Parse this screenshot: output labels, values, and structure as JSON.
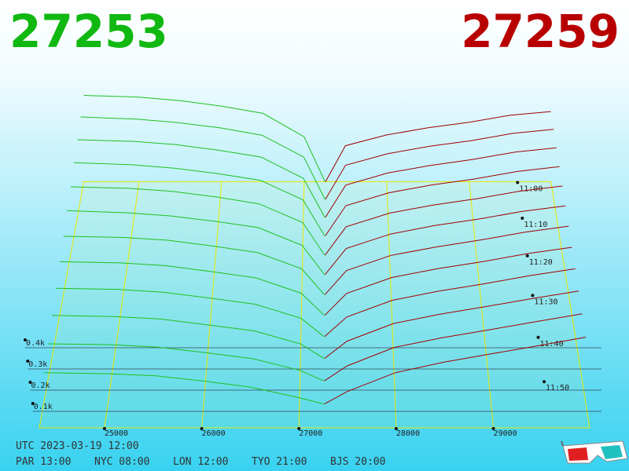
{
  "chart_data": {
    "type": "depth3d",
    "bid": 27253,
    "ask": 27259,
    "bid_color": "#11b811",
    "ask_color": "#b80000",
    "times": [
      "11:00",
      null,
      "11:10",
      null,
      "11:20",
      null,
      "11:30",
      null,
      "11:40",
      null,
      "11:50",
      null
    ],
    "series": [
      {
        "color": "#1fc01f",
        "x": [
          24330,
          25000,
          25500,
          26000,
          26500,
          27000,
          27253
        ],
        "values": [
          [
            480,
            470,
            450,
            420,
            380,
            250,
            0
          ],
          [
            452,
            440,
            421,
            392,
            352,
            232,
            0
          ],
          [
            421,
            412,
            394,
            364,
            327,
            212,
            0
          ],
          [
            392,
            381,
            363,
            334,
            298,
            193,
            0
          ],
          [
            360,
            352,
            336,
            307,
            270,
            172,
            0
          ],
          [
            333,
            322,
            306,
            278,
            245,
            152,
            0
          ],
          [
            300,
            294,
            280,
            250,
            217,
            133,
            0
          ],
          [
            272,
            266,
            252,
            222,
            190,
            112,
            0
          ],
          [
            241,
            236,
            222,
            193,
            162,
            92,
            0
          ],
          [
            212,
            206,
            194,
            165,
            136,
            72,
            0
          ],
          [
            180,
            176,
            164,
            137,
            108,
            51,
            0
          ],
          [
            150,
            145,
            135,
            110,
            80,
            30,
            0
          ]
        ]
      },
      {
        "color": "#a00000",
        "x": [
          27259,
          27500,
          28000,
          28500,
          29000,
          29500,
          29990
        ],
        "values": [
          [
            0,
            200,
            260,
            300,
            330,
            370,
            390
          ],
          [
            0,
            187,
            250,
            291,
            322,
            362,
            384
          ],
          [
            0,
            175,
            241,
            282,
            314,
            354,
            377
          ],
          [
            0,
            162,
            231,
            273,
            305,
            345,
            371
          ],
          [
            0,
            149,
            221,
            264,
            297,
            337,
            364
          ],
          [
            0,
            136,
            211,
            255,
            289,
            329,
            358
          ],
          [
            0,
            124,
            202,
            245,
            281,
            321,
            352
          ],
          [
            0,
            111,
            192,
            236,
            272,
            313,
            345
          ],
          [
            0,
            98,
            182,
            227,
            264,
            305,
            339
          ],
          [
            0,
            85,
            172,
            218,
            256,
            296,
            332
          ],
          [
            0,
            73,
            163,
            209,
            248,
            288,
            326
          ],
          [
            0,
            60,
            150,
            200,
            240,
            280,
            320
          ]
        ]
      }
    ],
    "xlim": [
      24330,
      29990
    ],
    "xticks": [
      25000,
      26000,
      27000,
      28000,
      29000
    ],
    "ylim": [
      0,
      400
    ],
    "yticks": [
      {
        "value": 100,
        "label": "0.1k"
      },
      {
        "value": 200,
        "label": "0.2k"
      },
      {
        "value": 300,
        "label": "0.3k"
      },
      {
        "value": 400,
        "label": "0.4k"
      }
    ]
  },
  "footer": {
    "utc": "UTC 2023-03-19 12:00",
    "clocks": [
      "PAR 13:00",
      "NYC 08:00",
      "LON 12:00",
      "TYO 21:00",
      "BJS 20:00"
    ]
  }
}
